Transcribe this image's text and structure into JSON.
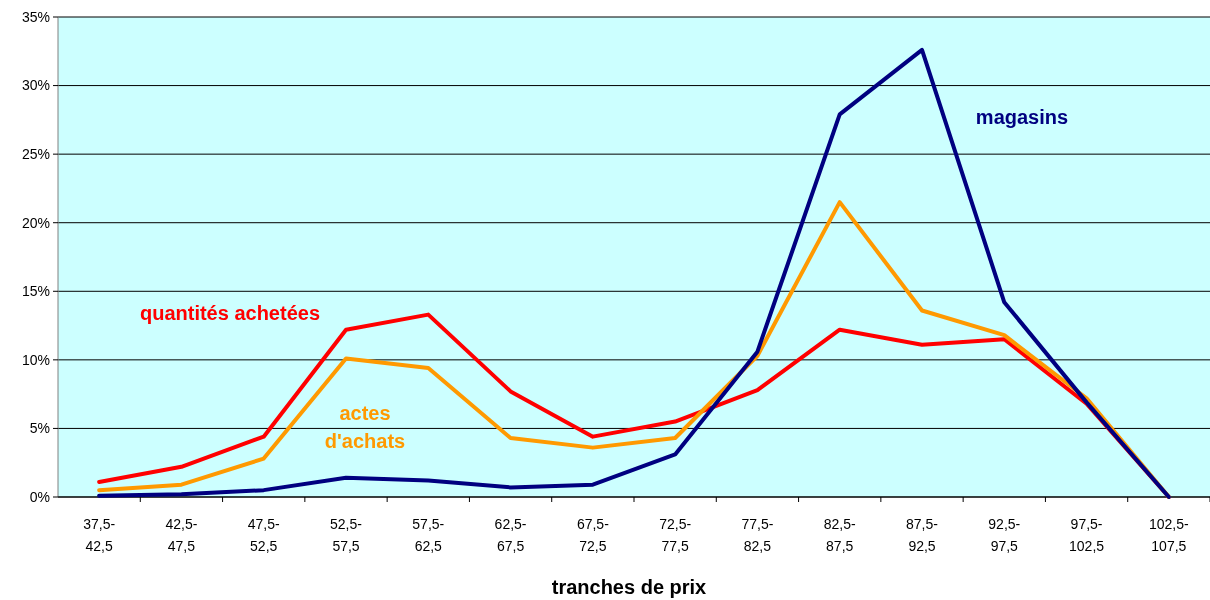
{
  "chart_data": {
    "type": "line",
    "xlabel": "tranches de prix",
    "categories": [
      "37,5-42,5",
      "42,5-47,5",
      "47,5-52,5",
      "52,5-57,5",
      "57,5-62,5",
      "62,5-67,5",
      "67,5-72,5",
      "72,5-77,5",
      "77,5-82,5",
      "82,5-87,5",
      "87,5-92,5",
      "92,5-97,5",
      "97,5-102,5",
      "102,5-107,5"
    ],
    "series": [
      {
        "name": "quantités achetées",
        "color": "#ff0000",
        "values": [
          1.1,
          2.2,
          4.4,
          12.2,
          13.3,
          7.7,
          4.4,
          5.5,
          7.8,
          12.2,
          11.1,
          11.5,
          6.8,
          0
        ]
      },
      {
        "name": "actes d'achats",
        "color": "#ff9900",
        "values": [
          0.5,
          0.9,
          2.8,
          10.1,
          9.4,
          4.3,
          3.6,
          4.3,
          10.3,
          21.5,
          13.6,
          11.8,
          7.2,
          0
        ]
      },
      {
        "name": "magasins",
        "color": "#000080",
        "values": [
          0.1,
          0.2,
          0.5,
          1.4,
          1.2,
          0.7,
          0.9,
          3.1,
          10.6,
          27.9,
          32.6,
          14.2,
          6.9,
          0
        ]
      }
    ],
    "ylim": [
      0,
      35
    ],
    "yticks": [
      {
        "value": 0,
        "label": "0%"
      },
      {
        "value": 5,
        "label": "5%"
      },
      {
        "value": 10,
        "label": "10%"
      },
      {
        "value": 15,
        "label": "15%"
      },
      {
        "value": 20,
        "label": "20%"
      },
      {
        "value": 25,
        "label": "25%"
      },
      {
        "value": 30,
        "label": "30%"
      },
      {
        "value": 35,
        "label": "35%"
      }
    ],
    "grid": "y",
    "legend": false,
    "marker": "none",
    "line_style": "solid"
  }
}
